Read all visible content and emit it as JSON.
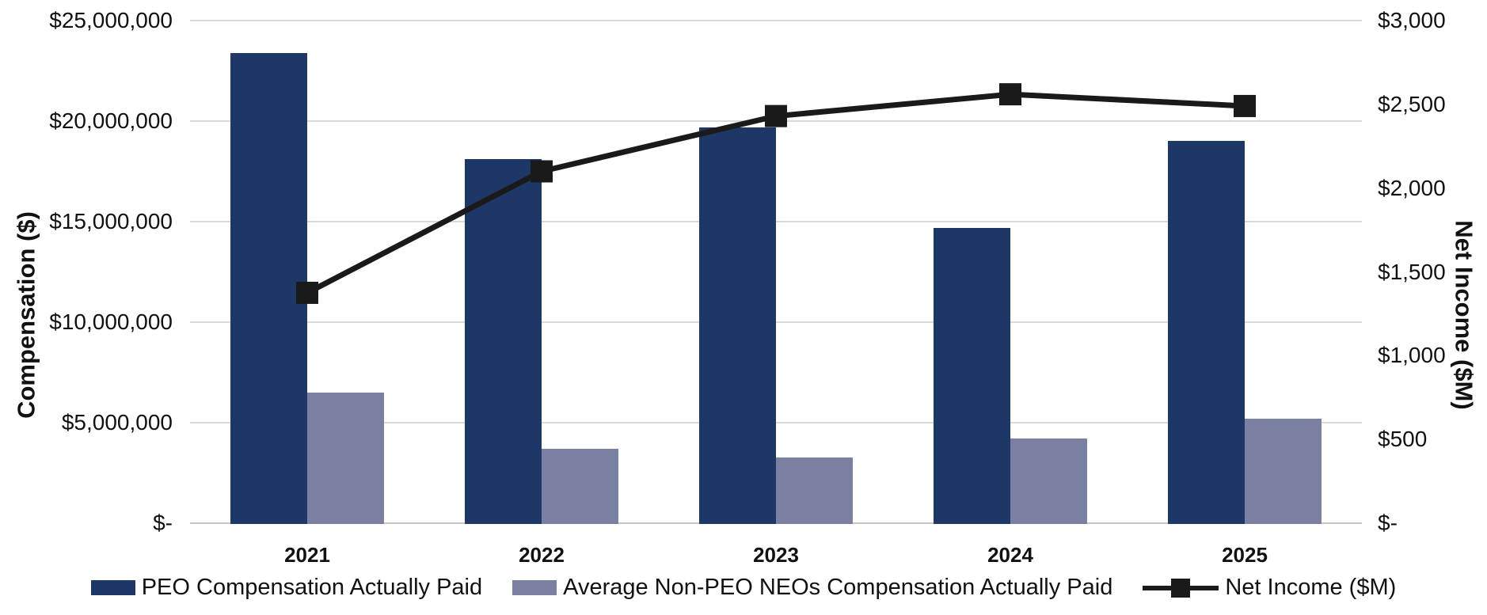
{
  "chart": {
    "left_axis_title": "Compensation ($)",
    "right_axis_title": "Net Income ($M)",
    "left_ticks": [
      "$25,000,000",
      "$20,000,000",
      "$15,000,000",
      "$10,000,000",
      "$5,000,000",
      "$-"
    ],
    "right_ticks": [
      "$3,000",
      "$2,500",
      "$2,000",
      "$1,500",
      "$1,000",
      "$500",
      "$-"
    ],
    "colors": {
      "peo_bar": "#1D3866",
      "nonpeo_bar": "#7A80A2",
      "line": "#1A1A1A",
      "gridline": "#DADADA",
      "axis_line": "#C6C6C6",
      "text": "#111111"
    }
  },
  "chart_data": {
    "type": "bar",
    "subtype": "clustered-bars-with-line-overlay",
    "categories": [
      "2021",
      "2022",
      "2023",
      "2024",
      "2025"
    ],
    "series": [
      {
        "name": "PEO Compensation Actually Paid",
        "type": "bar",
        "axis": "left",
        "color": "#1D3866",
        "values": [
          23400000,
          18100000,
          19700000,
          14700000,
          19000000
        ]
      },
      {
        "name": "Average Non-PEO NEOs Compensation Actually Paid",
        "type": "bar",
        "axis": "left",
        "color": "#7A80A2",
        "values": [
          6500000,
          3700000,
          3250000,
          4200000,
          5200000
        ]
      },
      {
        "name": "Net Income ($M)",
        "type": "line",
        "axis": "right",
        "color": "#1A1A1A",
        "marker": "square",
        "values": [
          1375,
          2100,
          2430,
          2560,
          2490
        ]
      }
    ],
    "left_axis": {
      "label": "Compensation ($)",
      "min": 0,
      "max": 25000000,
      "tick_interval": 5000000
    },
    "right_axis": {
      "label": "Net Income ($M)",
      "min": 0,
      "max": 3000,
      "tick_interval": 500
    },
    "grid": true,
    "legend_position": "bottom"
  }
}
